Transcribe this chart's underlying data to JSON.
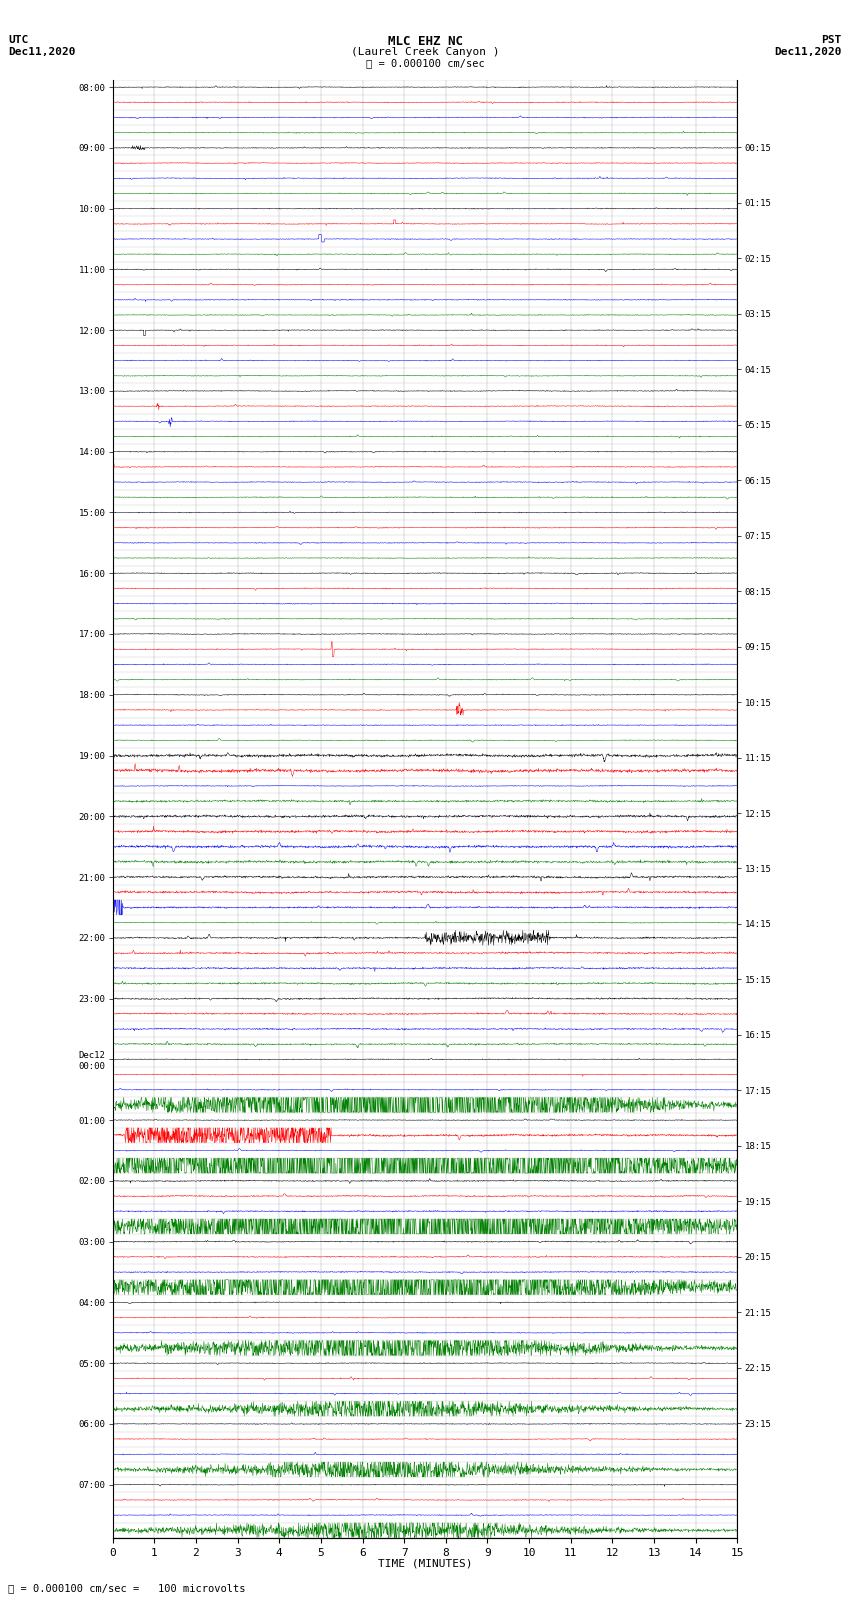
{
  "title_line1": "MLC EHZ NC",
  "title_line2": "(Laurel Creek Canyon )",
  "scale_label": "= 0.000100 cm/sec",
  "bottom_label": "= 0.000100 cm/sec =   100 microvolts",
  "xlabel": "TIME (MINUTES)",
  "left_header_line1": "UTC",
  "left_header_line2": "Dec11,2020",
  "right_header_line1": "PST",
  "right_header_line2": "Dec11,2020",
  "utc_times": [
    "08:00",
    "",
    "",
    "",
    "09:00",
    "",
    "",
    "",
    "10:00",
    "",
    "",
    "",
    "11:00",
    "",
    "",
    "",
    "12:00",
    "",
    "",
    "",
    "13:00",
    "",
    "",
    "",
    "14:00",
    "",
    "",
    "",
    "15:00",
    "",
    "",
    "",
    "16:00",
    "",
    "",
    "",
    "17:00",
    "",
    "",
    "",
    "18:00",
    "",
    "",
    "",
    "19:00",
    "",
    "",
    "",
    "20:00",
    "",
    "",
    "",
    "21:00",
    "",
    "",
    "",
    "22:00",
    "",
    "",
    "",
    "23:00",
    "",
    "",
    "",
    "Dec12\n00:00",
    "",
    "",
    "",
    "01:00",
    "",
    "",
    "",
    "02:00",
    "",
    "",
    "",
    "03:00",
    "",
    "",
    "",
    "04:00",
    "",
    "",
    "",
    "05:00",
    "",
    "",
    "",
    "06:00",
    "",
    "",
    "",
    "07:00",
    "",
    "",
    ""
  ],
  "pst_times": [
    "00:15",
    "",
    "",
    "",
    "01:15",
    "",
    "",
    "",
    "02:15",
    "",
    "",
    "",
    "03:15",
    "",
    "",
    "",
    "04:15",
    "",
    "",
    "",
    "05:15",
    "",
    "",
    "",
    "06:15",
    "",
    "",
    "",
    "07:15",
    "",
    "",
    "",
    "08:15",
    "",
    "",
    "",
    "09:15",
    "",
    "",
    "",
    "10:15",
    "",
    "",
    "",
    "11:15",
    "",
    "",
    "",
    "12:15",
    "",
    "",
    "",
    "13:15",
    "",
    "",
    "",
    "14:15",
    "",
    "",
    "",
    "15:15",
    "",
    "",
    "",
    "16:15",
    "",
    "",
    "",
    "17:15",
    "",
    "",
    "",
    "18:15",
    "",
    "",
    "",
    "19:15",
    "",
    "",
    "",
    "20:15",
    "",
    "",
    "",
    "21:15",
    "",
    "",
    "",
    "22:15",
    "",
    "",
    "",
    "23:15",
    "",
    "",
    ""
  ],
  "n_rows": 96,
  "colors_cycle": [
    "black",
    "red",
    "blue",
    "green"
  ],
  "background_color": "white",
  "xlim": [
    0,
    15
  ],
  "xticks": [
    0,
    1,
    2,
    3,
    4,
    5,
    6,
    7,
    8,
    9,
    10,
    11,
    12,
    13,
    14,
    15
  ]
}
